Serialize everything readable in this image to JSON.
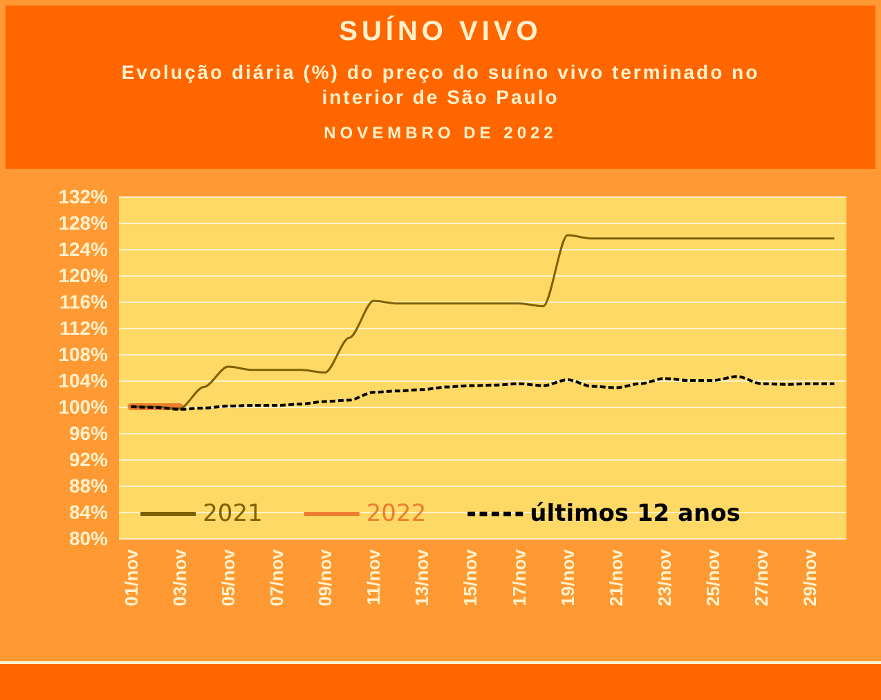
{
  "chart_data": {
    "type": "line",
    "title": "SUÍNO VIVO",
    "subtitle": "Evolução diária (%) do preço do suíno vivo terminado no interior de São Paulo",
    "annotations": [
      "NOVEMBRO DE 2022"
    ],
    "categories": [
      "01/nov",
      null,
      "03/nov",
      null,
      "05/nov",
      null,
      "07/nov",
      null,
      "09/nov",
      null,
      "11/nov",
      null,
      "13/nov",
      null,
      "15/nov",
      null,
      "17/nov",
      null,
      "19/nov",
      null,
      "21/nov",
      null,
      "23/nov",
      null,
      "25/nov",
      null,
      "27/nov",
      null,
      "29/nov",
      null
    ],
    "series": [
      {
        "name": "2021",
        "color": "#7f6000",
        "line_style": "solid",
        "values": [
          100,
          100,
          99.7,
          103,
          106.1,
          105.6,
          105.6,
          105.6,
          105.2,
          110.5,
          116.1,
          115.7,
          115.7,
          115.7,
          115.7,
          115.7,
          115.7,
          115.3,
          126.1,
          125.6,
          125.6,
          125.6,
          125.6,
          125.6,
          125.6,
          125.6,
          125.6,
          125.6,
          125.6,
          125.6
        ]
      },
      {
        "name": "2022",
        "color": "#ed7d31",
        "line_style": "solid",
        "values": [
          100,
          100,
          100,
          null,
          null,
          null,
          null,
          null,
          null,
          null,
          null,
          null,
          null,
          null,
          null,
          null,
          null,
          null,
          null,
          null,
          null,
          null,
          null,
          null,
          null,
          null,
          null,
          null,
          null,
          null
        ]
      },
      {
        "name": "últimos 12 anos",
        "color": "#000000",
        "line_style": "dashed",
        "values": [
          100,
          99.9,
          99.6,
          99.8,
          100.1,
          100.2,
          100.2,
          100.4,
          100.8,
          101.0,
          102.2,
          102.4,
          102.6,
          103.0,
          103.2,
          103.3,
          103.5,
          103.2,
          104.1,
          103.1,
          102.9,
          103.5,
          104.3,
          104.0,
          104.0,
          104.6,
          103.5,
          103.4,
          103.5,
          103.5
        ]
      }
    ],
    "ylim": [
      80,
      132
    ],
    "yticks": [
      {
        "value": 80,
        "label": "80%"
      },
      {
        "value": 84,
        "label": "84%"
      },
      {
        "value": 88,
        "label": "88%"
      },
      {
        "value": 92,
        "label": "92%"
      },
      {
        "value": 96,
        "label": "96%"
      },
      {
        "value": 100,
        "label": "100%"
      },
      {
        "value": 104,
        "label": "104%"
      },
      {
        "value": 108,
        "label": "108%"
      },
      {
        "value": 112,
        "label": "112%"
      },
      {
        "value": 116,
        "label": "116%"
      },
      {
        "value": 120,
        "label": "120%"
      },
      {
        "value": 124,
        "label": "124%"
      },
      {
        "value": 128,
        "label": "128%"
      },
      {
        "value": 132,
        "label": "132%"
      }
    ],
    "grid": "y",
    "legend": "bottom",
    "marker": "none"
  }
}
